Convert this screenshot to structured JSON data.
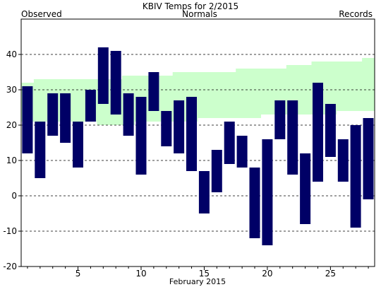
{
  "chart_data": {
    "type": "bar",
    "title": "KBIV Temps for 2/2015",
    "xlabel": "February 2015",
    "ylabel": "",
    "legend": {
      "observed": "Observed",
      "normals": "Normals",
      "records": "Records"
    },
    "colors": {
      "observed": "#000066",
      "normals_band": "#ccffcc",
      "normals_text": "#008000",
      "records_text": "#cc88cc",
      "observed_text": "#000066"
    },
    "xlim": [
      0.5,
      28.5
    ],
    "ylim": [
      -20,
      50
    ],
    "y_ticks": [
      -20,
      -10,
      0,
      10,
      20,
      30,
      40
    ],
    "x_ticks": [
      5,
      10,
      15,
      20,
      25
    ],
    "grid": "horizontal dashed at 0, 10, 20, 30, 40",
    "days": [
      1,
      2,
      3,
      4,
      5,
      6,
      7,
      8,
      9,
      10,
      11,
      12,
      13,
      14,
      15,
      16,
      17,
      18,
      19,
      20,
      21,
      22,
      23,
      24,
      25,
      26,
      27,
      28
    ],
    "observed_high": [
      31,
      21,
      29,
      29,
      21,
      30,
      42,
      41,
      29,
      28,
      35,
      24,
      27,
      28,
      7,
      13,
      21,
      17,
      8,
      16,
      27,
      27,
      12,
      32,
      26,
      16,
      20,
      22
    ],
    "observed_low": [
      12,
      5,
      17,
      15,
      8,
      21,
      26,
      23,
      17,
      6,
      24,
      14,
      12,
      7,
      -5,
      1,
      9,
      8,
      -12,
      -14,
      16,
      6,
      -8,
      4,
      11,
      4,
      -9,
      -1
    ],
    "normal_high": [
      32,
      33,
      33,
      33,
      33,
      33,
      33,
      33,
      34,
      34,
      34,
      34,
      35,
      35,
      35,
      35,
      35,
      36,
      36,
      36,
      36,
      37,
      37,
      38,
      38,
      38,
      38,
      39
    ],
    "normal_low": [
      21,
      21,
      21,
      21,
      21,
      21,
      20,
      20,
      20,
      21,
      21,
      21,
      21,
      21,
      22,
      22,
      22,
      22,
      22,
      23,
      23,
      23,
      23,
      23,
      23,
      24,
      24,
      24
    ]
  }
}
